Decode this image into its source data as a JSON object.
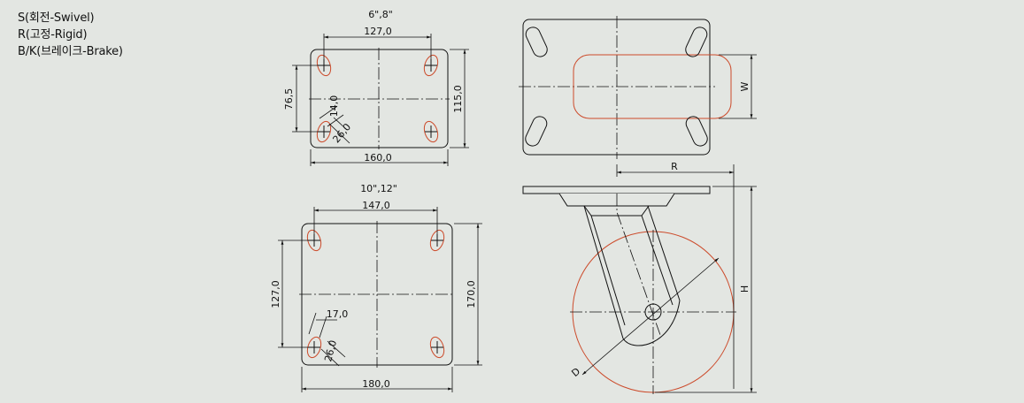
{
  "legend": {
    "swivel": "S(회전-Swivel)",
    "rigid": "R(고정-Rigid)",
    "brake": "B/K(브레이크-Brake)"
  },
  "plate_small": {
    "title": "6\",8\"",
    "dim_top": "127,0",
    "dim_bottom": "160,0",
    "dim_left": "76,5",
    "dim_right": "115,0",
    "slot_width": "14,0",
    "slot_length": "26,0"
  },
  "plate_large": {
    "title": "10\",12\"",
    "dim_top": "147,0",
    "dim_bottom": "180,0",
    "dim_left": "127,0",
    "dim_right": "170,0",
    "slot_width": "17,0",
    "slot_length": "26,0"
  },
  "caster": {
    "label_w": "W",
    "label_r": "R",
    "label_h": "H",
    "label_d": "D"
  },
  "colors": {
    "background": "#e3e6e2",
    "line": "#111111",
    "wheel": "#cc4a2a"
  }
}
